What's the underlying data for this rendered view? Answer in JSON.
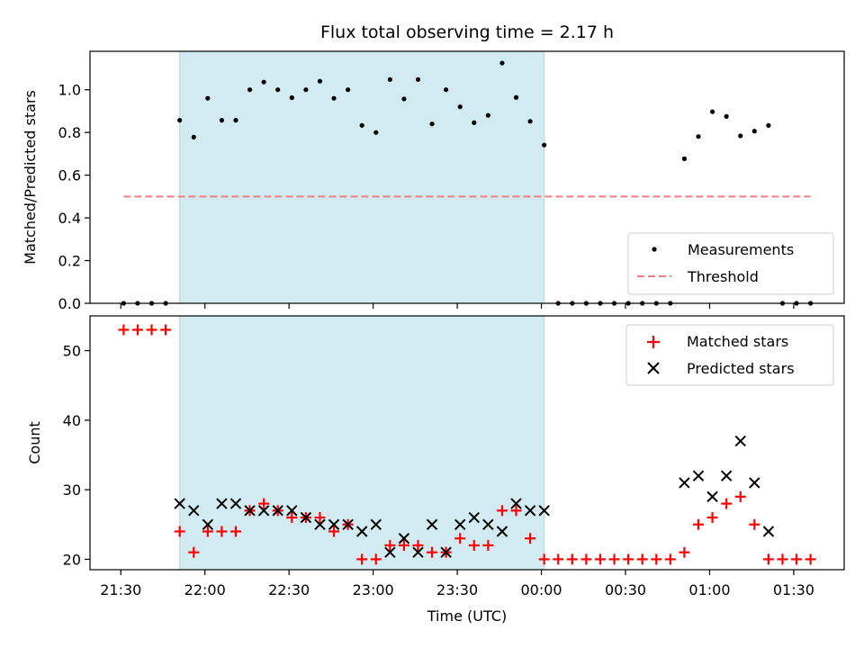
{
  "chart_data": {
    "type": "scatter",
    "title": "Flux total observing time = 2.17 h",
    "xlabel": "Time (UTC)",
    "x_ticks": [
      "21:30",
      "22:00",
      "22:30",
      "23:00",
      "23:30",
      "00:00",
      "00:30",
      "01:00",
      "01:30"
    ],
    "x_tick_minutes": [
      0,
      30,
      60,
      90,
      120,
      150,
      180,
      210,
      240
    ],
    "x_range_minutes": [
      -11,
      258
    ],
    "shaded_interval_minutes": [
      21,
      151
    ],
    "shaded_color": "#add8e6",
    "top_panel": {
      "ylabel": "Matched/Predicted stars",
      "ylim": [
        0,
        1.18
      ],
      "y_ticks": [
        "0.0",
        "0.2",
        "0.4",
        "0.6",
        "0.8",
        "1.0"
      ],
      "y_tick_values": [
        0,
        0.2,
        0.4,
        0.6,
        0.8,
        1.0
      ],
      "legend_position": "lower-right",
      "threshold": {
        "name": "Threshold",
        "value": 0.5,
        "x_range_minutes": [
          1,
          246
        ],
        "color": "#f08080"
      },
      "measurements": {
        "name": "Measurements",
        "color": "#000000",
        "x": [
          1,
          6,
          11,
          16,
          21,
          26,
          31,
          36,
          41,
          46,
          51,
          56,
          61,
          66,
          71,
          76,
          81,
          86,
          91,
          96,
          101,
          106,
          111,
          116,
          121,
          126,
          131,
          136,
          141,
          146,
          151,
          156,
          161,
          166,
          171,
          176,
          181,
          186,
          191,
          196,
          201,
          206,
          211,
          216,
          221,
          226,
          231,
          236,
          241,
          246
        ],
        "y": [
          0,
          0,
          0,
          0,
          0.857,
          0.778,
          0.96,
          0.857,
          0.857,
          1.0,
          1.036,
          1.0,
          0.963,
          1.0,
          1.04,
          0.96,
          1.0,
          0.833,
          0.8,
          1.048,
          0.957,
          1.048,
          0.84,
          1.0,
          0.92,
          0.846,
          0.88,
          1.125,
          0.964,
          0.852,
          0.741,
          0,
          0,
          0,
          0,
          0,
          0,
          0,
          0,
          0,
          0.677,
          0.781,
          0.897,
          0.875,
          0.784,
          0.806,
          0.833,
          0,
          0,
          0
        ]
      }
    },
    "bottom_panel": {
      "ylabel": "Count",
      "ylim": [
        18.5,
        55
      ],
      "y_ticks": [
        "20",
        "30",
        "40",
        "50"
      ],
      "y_tick_values": [
        20,
        30,
        40,
        50
      ],
      "legend_position": "upper-right",
      "series": [
        {
          "name": "Matched stars",
          "marker": "plus",
          "color": "#ff0000",
          "x": [
            1,
            6,
            11,
            16,
            21,
            26,
            31,
            36,
            41,
            46,
            51,
            56,
            61,
            66,
            71,
            76,
            81,
            86,
            91,
            96,
            101,
            106,
            111,
            116,
            121,
            126,
            131,
            136,
            141,
            146,
            151,
            156,
            161,
            166,
            171,
            176,
            181,
            186,
            191,
            196,
            201,
            206,
            211,
            216,
            221,
            226,
            231,
            236,
            241,
            246
          ],
          "y": [
            53,
            53,
            53,
            53,
            24,
            21,
            24,
            24,
            24,
            27,
            28,
            27,
            26,
            26,
            26,
            24,
            25,
            20,
            20,
            22,
            22,
            22,
            21,
            21,
            23,
            22,
            22,
            27,
            27,
            23,
            20,
            20,
            20,
            20,
            20,
            20,
            20,
            20,
            20,
            20,
            21,
            25,
            26,
            28,
            29,
            25,
            20,
            20,
            20,
            20
          ]
        },
        {
          "name": "Predicted stars",
          "marker": "x",
          "color": "#000000",
          "x": [
            21,
            26,
            31,
            36,
            41,
            46,
            51,
            56,
            61,
            66,
            71,
            76,
            81,
            86,
            91,
            96,
            101,
            106,
            111,
            116,
            121,
            126,
            131,
            136,
            141,
            146,
            151,
            201,
            206,
            211,
            216,
            221,
            226,
            231
          ],
          "y": [
            28,
            27,
            25,
            28,
            28,
            27,
            27,
            27,
            27,
            26,
            25,
            25,
            25,
            24,
            25,
            21,
            23,
            21,
            25,
            21,
            25,
            26,
            25,
            24,
            28,
            27,
            27,
            31,
            32,
            29,
            32,
            37,
            31,
            24
          ]
        }
      ]
    }
  }
}
